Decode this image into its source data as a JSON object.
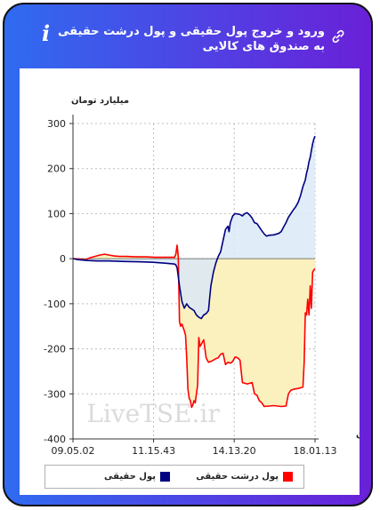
{
  "header": {
    "title": "ورود و خروج پول حقیقی و پول درشت حقیقی به صندوق های کالایی",
    "info_icon": "i"
  },
  "icons": {
    "info": "info-icon",
    "link": "link-icon"
  },
  "watermark": "LiveTSE.ir",
  "colors": {
    "gradient_start": "#2f6bf0",
    "gradient_end": "#6a20d8",
    "series_real": "#000080",
    "series_big": "#ff0000",
    "area_real": "#dbe9f6",
    "area_big": "#fbf1bf"
  },
  "chart_data": {
    "type": "line",
    "ylabel": "میلیارد تومان",
    "xlabel": "زمان",
    "ylim": [
      -400,
      300
    ],
    "yticks": [
      300,
      200,
      100,
      0,
      -100,
      -200,
      -300,
      -400
    ],
    "xtick_labels": [
      "09.05.02",
      "11.15.43",
      "14.13.20",
      "18.01.13"
    ],
    "xtick_positions": [
      0,
      0.333,
      0.666,
      1.0
    ],
    "grid": true,
    "legend_position": "bottom",
    "series": [
      {
        "name": "پول حقیقی",
        "color": "#000080",
        "points": [
          [
            0.0,
            0
          ],
          [
            0.02,
            -2
          ],
          [
            0.06,
            -4
          ],
          [
            0.1,
            -5
          ],
          [
            0.15,
            -5
          ],
          [
            0.2,
            -6
          ],
          [
            0.28,
            -7
          ],
          [
            0.33,
            -8
          ],
          [
            0.38,
            -10
          ],
          [
            0.42,
            -12
          ],
          [
            0.425,
            -14
          ],
          [
            0.43,
            -20
          ],
          [
            0.44,
            -60
          ],
          [
            0.45,
            -95
          ],
          [
            0.46,
            -110
          ],
          [
            0.47,
            -100
          ],
          [
            0.48,
            -108
          ],
          [
            0.5,
            -115
          ],
          [
            0.51,
            -125
          ],
          [
            0.52,
            -130
          ],
          [
            0.53,
            -133
          ],
          [
            0.54,
            -125
          ],
          [
            0.55,
            -122
          ],
          [
            0.56,
            -115
          ],
          [
            0.565,
            -85
          ],
          [
            0.57,
            -60
          ],
          [
            0.58,
            -30
          ],
          [
            0.59,
            -10
          ],
          [
            0.6,
            5
          ],
          [
            0.61,
            15
          ],
          [
            0.62,
            40
          ],
          [
            0.63,
            65
          ],
          [
            0.64,
            72
          ],
          [
            0.645,
            60
          ],
          [
            0.65,
            80
          ],
          [
            0.66,
            95
          ],
          [
            0.67,
            100
          ],
          [
            0.69,
            98
          ],
          [
            0.7,
            95
          ],
          [
            0.71,
            100
          ],
          [
            0.72,
            102
          ],
          [
            0.73,
            97
          ],
          [
            0.74,
            90
          ],
          [
            0.75,
            80
          ],
          [
            0.76,
            78
          ],
          [
            0.77,
            70
          ],
          [
            0.78,
            62
          ],
          [
            0.79,
            55
          ],
          [
            0.8,
            50
          ],
          [
            0.81,
            52
          ],
          [
            0.83,
            53
          ],
          [
            0.85,
            56
          ],
          [
            0.86,
            60
          ],
          [
            0.87,
            70
          ],
          [
            0.88,
            80
          ],
          [
            0.89,
            92
          ],
          [
            0.9,
            100
          ],
          [
            0.91,
            108
          ],
          [
            0.92,
            115
          ],
          [
            0.93,
            125
          ],
          [
            0.94,
            140
          ],
          [
            0.95,
            160
          ],
          [
            0.96,
            175
          ],
          [
            0.965,
            190
          ],
          [
            0.97,
            200
          ],
          [
            0.975,
            215
          ],
          [
            0.98,
            225
          ],
          [
            0.985,
            240
          ],
          [
            0.99,
            255
          ],
          [
            0.995,
            265
          ],
          [
            1.0,
            272
          ]
        ]
      },
      {
        "name": "پول درشت حقیقی",
        "color": "#ff0000",
        "points": [
          [
            0.0,
            0
          ],
          [
            0.03,
            -1
          ],
          [
            0.05,
            -3
          ],
          [
            0.07,
            2
          ],
          [
            0.09,
            5
          ],
          [
            0.11,
            8
          ],
          [
            0.13,
            10
          ],
          [
            0.15,
            8
          ],
          [
            0.17,
            6
          ],
          [
            0.19,
            5
          ],
          [
            0.22,
            5
          ],
          [
            0.26,
            4
          ],
          [
            0.3,
            4
          ],
          [
            0.34,
            3
          ],
          [
            0.38,
            3
          ],
          [
            0.42,
            3
          ],
          [
            0.425,
            10
          ],
          [
            0.43,
            30
          ],
          [
            0.435,
            5
          ],
          [
            0.44,
            -140
          ],
          [
            0.445,
            -150
          ],
          [
            0.45,
            -145
          ],
          [
            0.46,
            -160
          ],
          [
            0.465,
            -170
          ],
          [
            0.47,
            -220
          ],
          [
            0.475,
            -290
          ],
          [
            0.48,
            -310
          ],
          [
            0.485,
            -315
          ],
          [
            0.49,
            -330
          ],
          [
            0.495,
            -325
          ],
          [
            0.5,
            -315
          ],
          [
            0.505,
            -320
          ],
          [
            0.51,
            -300
          ],
          [
            0.515,
            -280
          ],
          [
            0.52,
            -175
          ],
          [
            0.525,
            -195
          ],
          [
            0.53,
            -190
          ],
          [
            0.54,
            -180
          ],
          [
            0.55,
            -220
          ],
          [
            0.56,
            -230
          ],
          [
            0.57,
            -228
          ],
          [
            0.58,
            -225
          ],
          [
            0.59,
            -222
          ],
          [
            0.6,
            -220
          ],
          [
            0.61,
            -212
          ],
          [
            0.62,
            -210
          ],
          [
            0.63,
            -235
          ],
          [
            0.64,
            -230
          ],
          [
            0.65,
            -232
          ],
          [
            0.66,
            -228
          ],
          [
            0.67,
            -218
          ],
          [
            0.68,
            -220
          ],
          [
            0.69,
            -225
          ],
          [
            0.7,
            -275
          ],
          [
            0.72,
            -278
          ],
          [
            0.74,
            -275
          ],
          [
            0.75,
            -300
          ],
          [
            0.76,
            -303
          ],
          [
            0.77,
            -315
          ],
          [
            0.78,
            -320
          ],
          [
            0.79,
            -328
          ],
          [
            0.81,
            -327
          ],
          [
            0.83,
            -326
          ],
          [
            0.86,
            -328
          ],
          [
            0.88,
            -327
          ],
          [
            0.89,
            -300
          ],
          [
            0.9,
            -292
          ],
          [
            0.91,
            -290
          ],
          [
            0.93,
            -288
          ],
          [
            0.95,
            -285
          ],
          [
            0.955,
            -230
          ],
          [
            0.96,
            -120
          ],
          [
            0.965,
            -125
          ],
          [
            0.97,
            -90
          ],
          [
            0.975,
            -125
          ],
          [
            0.98,
            -60
          ],
          [
            0.985,
            -110
          ],
          [
            0.99,
            -30
          ],
          [
            0.995,
            -25
          ],
          [
            1.0,
            -22
          ]
        ]
      }
    ]
  }
}
